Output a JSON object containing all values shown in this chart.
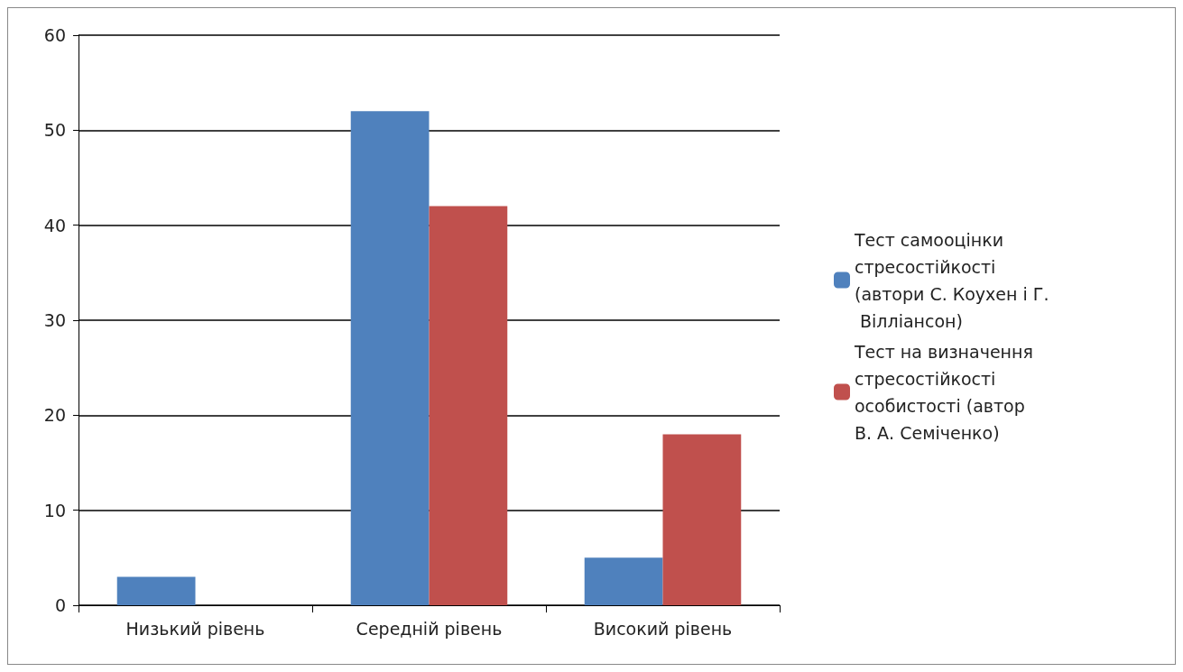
{
  "chart_data": {
    "type": "bar",
    "categories": [
      "Низький рівень",
      "Середній рівень",
      "Високий рівень"
    ],
    "series": [
      {
        "name": "Тест самооцінки стресостійкості (автори С. Коухен і Г. Вілліансон)",
        "color": "#4f81bd",
        "values": [
          3,
          52,
          5
        ]
      },
      {
        "name": "Тест на визначення стресостійкості особистості (автор В. А. Семіченко)",
        "color": "#c0504d",
        "values": [
          0,
          42,
          18
        ]
      }
    ],
    "ylim": [
      0,
      60
    ],
    "yticks": [
      0,
      10,
      20,
      30,
      40,
      50,
      60
    ],
    "grid": "y",
    "legend": "right"
  }
}
